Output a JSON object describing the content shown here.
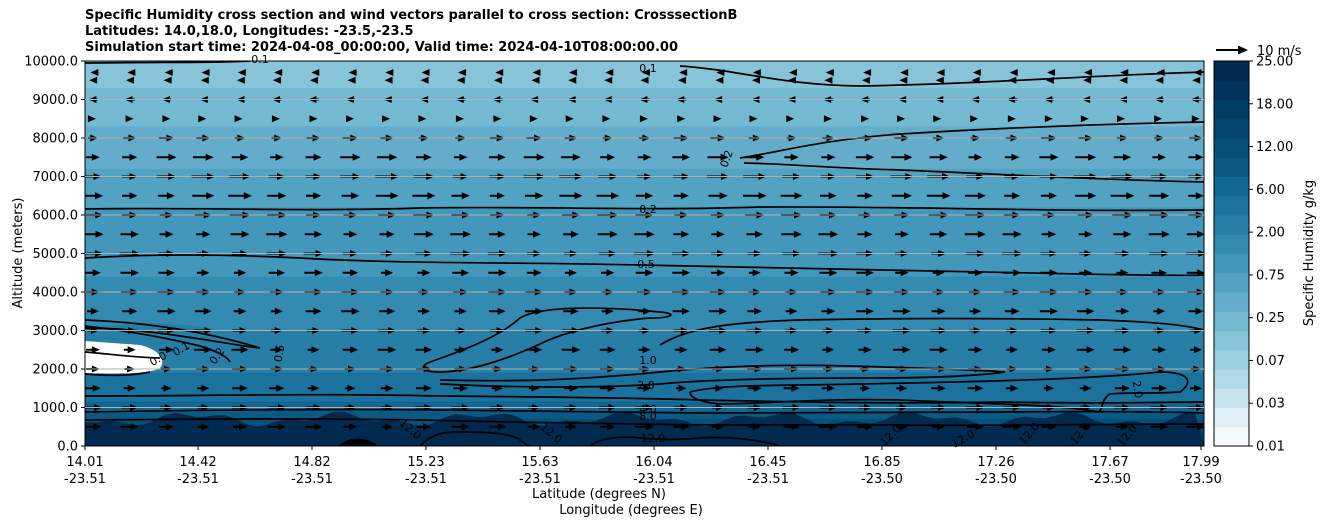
{
  "title_lines": [
    "Specific Humidity cross section and wind vectors parallel to cross section: CrosssectionB",
    "Latitudes: 14.0,18.0, Longitudes: -23.5,-23.5",
    "Simulation start time: 2024-04-08_00:00:00, Valid time: 2024-04-10T08:00:00.00"
  ],
  "chart_data": {
    "type": "contour",
    "ylabel": "Altitude (meters)",
    "xlabel_line1": "Latitude (degrees N)",
    "xlabel_line2": "Longitude (degrees E)",
    "ylim": [
      0,
      10000
    ],
    "yticks": [
      "0.0",
      "1000.0",
      "2000.0",
      "3000.0",
      "4000.0",
      "5000.0",
      "6000.0",
      "7000.0",
      "8000.0",
      "9000.0",
      "10000.0"
    ],
    "xticks": [
      {
        "lat": "14.01",
        "lon": "-23.51"
      },
      {
        "lat": "14.42",
        "lon": "-23.51"
      },
      {
        "lat": "14.82",
        "lon": "-23.51"
      },
      {
        "lat": "15.23",
        "lon": "-23.51"
      },
      {
        "lat": "15.63",
        "lon": "-23.51"
      },
      {
        "lat": "16.04",
        "lon": "-23.51"
      },
      {
        "lat": "16.45",
        "lon": "-23.51"
      },
      {
        "lat": "16.85",
        "lon": "-23.50"
      },
      {
        "lat": "17.26",
        "lon": "-23.50"
      },
      {
        "lat": "17.67",
        "lon": "-23.50"
      },
      {
        "lat": "17.99",
        "lon": "-23.50"
      }
    ],
    "colorbar": {
      "label": "Specific Humidity g/kg",
      "ticks": [
        "0.01",
        "0.03",
        "0.07",
        "0.25",
        "0.75",
        "2.00",
        "6.00",
        "12.00",
        "18.00",
        "25.00"
      ],
      "levels": 20,
      "colors": [
        "#f2f9fb",
        "#ddeff4",
        "#c6e4ee",
        "#b1dae7",
        "#9ccfe0",
        "#88c4d9",
        "#74b9d2",
        "#63adca",
        "#52a2c2",
        "#4397ba",
        "#348bb1",
        "#277fa8",
        "#1a729d",
        "#116692",
        "#0a5a86",
        "#06507a",
        "#03466d",
        "#023d63",
        "#02335a",
        "#012a50"
      ]
    },
    "contours": [
      {
        "level": "0.1",
        "altitude_m": 9600
      },
      {
        "level": "0.2",
        "altitude_m": 6100
      },
      {
        "level": "0.5",
        "altitude_m": 4700
      },
      {
        "level": "1.0",
        "altitude_m": 2000
      },
      {
        "level": "2.0",
        "altitude_m": 1500
      },
      {
        "level": "4.0",
        "altitude_m": 900
      },
      {
        "level": "8.0",
        "altitude_m": 750
      },
      {
        "level": "12.0",
        "altitude_m": 300
      }
    ],
    "contour_labels": [
      "0.1",
      "0.1",
      "0.2",
      "0.2",
      "0.5",
      "1.0",
      "2.0",
      "4.0",
      "8.0",
      "12.0",
      "12.0",
      "12.0",
      "12.0",
      "12.0",
      "12.0",
      "12.0",
      "12.0",
      "2.0",
      "0.5",
      "0.2",
      "0.1",
      "0.0"
    ],
    "wind_vectors": {
      "reference_label": "10 m/s",
      "reference_speed_ms": 10,
      "direction": "along cross section (toward increasing latitude)",
      "rows": [
        {
          "altitude_m": 9700,
          "u_ms": -2
        },
        {
          "altitude_m": 9500,
          "u_ms": -3
        },
        {
          "altitude_m": 9000,
          "u_ms": -4
        },
        {
          "altitude_m": 8500,
          "u_ms": 3
        },
        {
          "altitude_m": 8000,
          "u_ms": 6
        },
        {
          "altitude_m": 7500,
          "u_ms": 8
        },
        {
          "altitude_m": 7000,
          "u_ms": 9
        },
        {
          "altitude_m": 6500,
          "u_ms": 9
        },
        {
          "altitude_m": 6000,
          "u_ms": 8
        },
        {
          "altitude_m": 5500,
          "u_ms": 8
        },
        {
          "altitude_m": 5000,
          "u_ms": 8
        },
        {
          "altitude_m": 4500,
          "u_ms": 7
        },
        {
          "altitude_m": 4000,
          "u_ms": 7
        },
        {
          "altitude_m": 3500,
          "u_ms": 7
        },
        {
          "altitude_m": 3000,
          "u_ms": 7
        },
        {
          "altitude_m": 2500,
          "u_ms": 7
        },
        {
          "altitude_m": 2000,
          "u_ms": 6
        },
        {
          "altitude_m": 1500,
          "u_ms": 6
        },
        {
          "altitude_m": 1000,
          "u_ms": 7
        },
        {
          "altitude_m": 500,
          "u_ms": 7
        }
      ]
    }
  }
}
